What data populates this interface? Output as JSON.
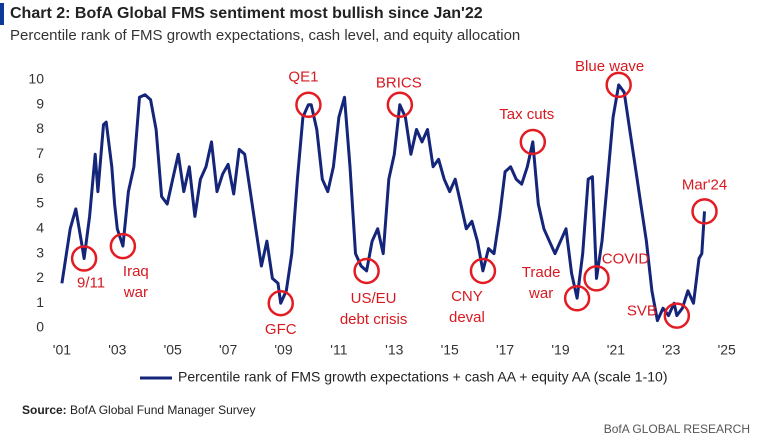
{
  "chart_data": {
    "type": "line",
    "title": "Chart 2: BofA Global FMS sentiment most bullish since Jan'22",
    "subtitle": "Percentile rank of FMS growth expectations, cash level, and equity allocation",
    "x": [
      2001.0,
      2001.3,
      2001.5,
      2001.7,
      2001.8,
      2002.0,
      2002.2,
      2002.3,
      2002.5,
      2002.6,
      2002.8,
      2002.9,
      2003.0,
      2003.2,
      2003.4,
      2003.6,
      2003.8,
      2004.0,
      2004.2,
      2004.4,
      2004.6,
      2004.8,
      2005.0,
      2005.2,
      2005.4,
      2005.6,
      2005.8,
      2006.0,
      2006.2,
      2006.4,
      2006.6,
      2006.8,
      2007.0,
      2007.2,
      2007.4,
      2007.6,
      2007.8,
      2008.0,
      2008.2,
      2008.4,
      2008.6,
      2008.8,
      2008.9,
      2009.1,
      2009.3,
      2009.5,
      2009.7,
      2009.9,
      2010.0,
      2010.2,
      2010.4,
      2010.6,
      2010.8,
      2011.0,
      2011.2,
      2011.4,
      2011.6,
      2011.8,
      2012.0,
      2012.2,
      2012.4,
      2012.6,
      2012.8,
      2013.0,
      2013.2,
      2013.4,
      2013.6,
      2013.8,
      2014.0,
      2014.2,
      2014.4,
      2014.6,
      2014.8,
      2015.0,
      2015.2,
      2015.4,
      2015.6,
      2015.8,
      2016.0,
      2016.2,
      2016.4,
      2016.6,
      2016.8,
      2017.0,
      2017.2,
      2017.4,
      2017.6,
      2017.8,
      2018.0,
      2018.2,
      2018.4,
      2018.6,
      2018.8,
      2019.0,
      2019.2,
      2019.4,
      2019.6,
      2019.8,
      2020.0,
      2020.15,
      2020.3,
      2020.5,
      2020.7,
      2020.9,
      2021.1,
      2021.3,
      2021.5,
      2021.7,
      2021.9,
      2022.1,
      2022.3,
      2022.5,
      2022.7,
      2022.9,
      2023.1,
      2023.2,
      2023.4,
      2023.6,
      2023.8,
      2024.0,
      2024.1,
      2024.2
    ],
    "series": [
      {
        "name": "Percentile rank of FMS growth expectations + cash AA + equity AA (scale 1-10)",
        "color": "#14257a",
        "values": [
          1.8,
          4.0,
          4.8,
          3.5,
          2.8,
          4.5,
          7.0,
          5.5,
          8.2,
          8.3,
          6.5,
          5.0,
          4.0,
          3.3,
          5.5,
          6.5,
          9.3,
          9.4,
          9.2,
          8.0,
          5.3,
          5.0,
          6.0,
          7.0,
          5.5,
          6.5,
          4.5,
          6.0,
          6.5,
          7.5,
          5.5,
          6.2,
          6.6,
          5.4,
          7.2,
          7.0,
          5.5,
          4.0,
          2.5,
          3.5,
          2.0,
          1.8,
          1.0,
          1.5,
          3.0,
          6.0,
          8.5,
          9.0,
          9.0,
          8.0,
          6.0,
          5.5,
          6.5,
          8.5,
          9.3,
          6.5,
          3.0,
          2.5,
          2.3,
          3.5,
          4.0,
          3.0,
          6.0,
          7.0,
          9.0,
          8.5,
          7.0,
          8.0,
          7.5,
          8.0,
          6.5,
          6.8,
          6.0,
          5.5,
          6.0,
          5.0,
          4.0,
          4.3,
          3.5,
          2.3,
          3.2,
          3.0,
          4.5,
          6.3,
          6.5,
          6.0,
          5.8,
          6.5,
          7.5,
          5.0,
          4.0,
          3.5,
          3.0,
          3.5,
          4.0,
          2.2,
          1.2,
          3.0,
          6.0,
          6.1,
          2.0,
          3.5,
          6.0,
          8.5,
          9.8,
          9.5,
          8.0,
          6.5,
          5.0,
          3.5,
          1.5,
          0.3,
          0.8,
          0.5,
          1.0,
          0.5,
          0.8,
          1.5,
          1.0,
          2.8,
          3.0,
          4.7
        ]
      }
    ],
    "xlim": [
      2000.75,
      2025.3
    ],
    "ylim": [
      0,
      10.4
    ],
    "xticks": [
      {
        "value": 2001,
        "label": "'01"
      },
      {
        "value": 2003,
        "label": "'03"
      },
      {
        "value": 2005,
        "label": "'05"
      },
      {
        "value": 2007,
        "label": "'07"
      },
      {
        "value": 2009,
        "label": "'09"
      },
      {
        "value": 2011,
        "label": "'11"
      },
      {
        "value": 2013,
        "label": "'13"
      },
      {
        "value": 2015,
        "label": "'15"
      },
      {
        "value": 2017,
        "label": "'17"
      },
      {
        "value": 2019,
        "label": "'19"
      },
      {
        "value": 2021,
        "label": "'21"
      },
      {
        "value": 2023,
        "label": "'23"
      },
      {
        "value": 2025,
        "label": "'25"
      }
    ],
    "yticks": [
      0,
      1,
      2,
      3,
      4,
      5,
      6,
      7,
      8,
      9,
      10
    ],
    "grid": false,
    "legend": "bottom",
    "annotations": [
      [
        "9/11"
      ],
      [
        "Iraq",
        "war"
      ],
      [
        "GFC"
      ],
      [
        "QE1"
      ],
      [
        "US/EU",
        "debt crisis"
      ],
      [
        "BRICS"
      ],
      [
        "CNY",
        "deval"
      ],
      [
        "Tax cuts"
      ],
      [
        "Trade",
        "war"
      ],
      [
        "COVID"
      ],
      [
        "Blue wave"
      ],
      [
        "SVB"
      ],
      [
        "Mar'24"
      ]
    ],
    "source_label": "Source:",
    "source": "BofA Global Fund Manager Survey",
    "footer": "BofA GLOBAL RESEARCH"
  }
}
